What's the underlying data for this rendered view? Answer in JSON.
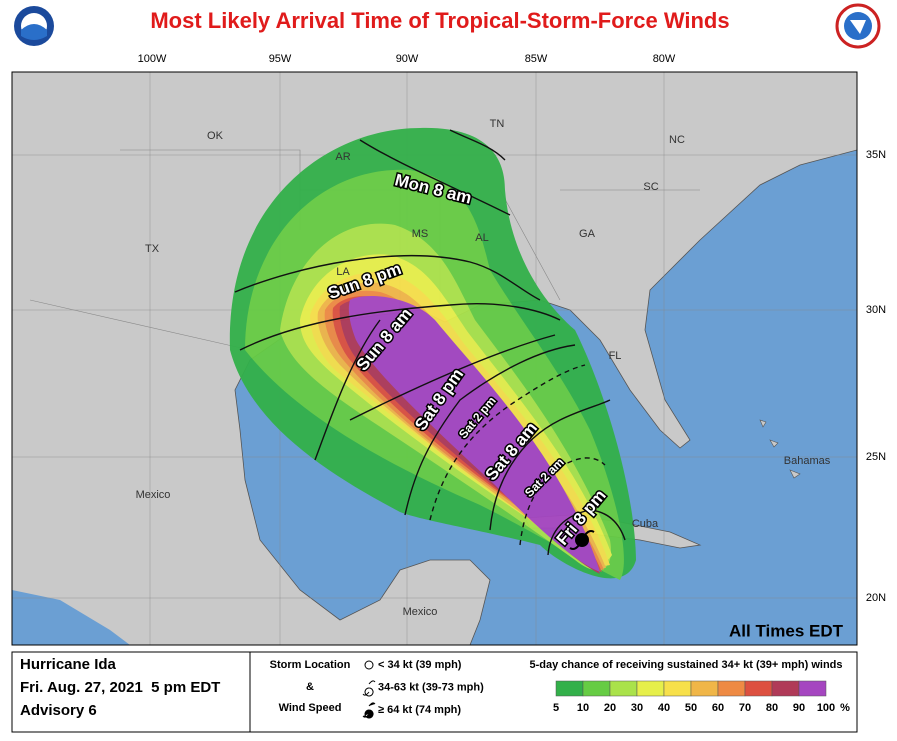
{
  "header": {
    "title": "Most Likely Arrival Time of Tropical-Storm-Force Winds"
  },
  "map": {
    "longitudes": [
      "100W",
      "95W",
      "90W",
      "85W",
      "80W"
    ],
    "latitudes": [
      "35N",
      "30N",
      "25N",
      "20N"
    ],
    "places": [
      "OK",
      "AR",
      "TN",
      "NC",
      "SC",
      "MS",
      "AL",
      "GA",
      "TX",
      "LA",
      "FL",
      "Bahamas",
      "Cuba",
      "Mexico",
      "Mexico"
    ],
    "arrival_times": [
      "Mon 8 am",
      "Sun 8 pm",
      "Sun 8 am",
      "Sat 8 pm",
      "Sat 2 pm",
      "Sat 8 am",
      "Sat 2 am",
      "Fri 8 pm"
    ],
    "note": "All Times EDT"
  },
  "footer": {
    "storm": {
      "name": "Hurricane Ida",
      "issued": "Fri. Aug. 27, 2021  5 pm EDT",
      "advisory": "Advisory 6"
    },
    "storm_location": {
      "title": "Storm Location",
      "amp": "&",
      "subtitle": "Wind Speed",
      "items": [
        "< 34 kt (39 mph)",
        "34-63 kt (39-73 mph)",
        "≥ 64 kt (74 mph)"
      ]
    },
    "probability": {
      "title": "5-day chance of receiving sustained 34+ kt (39+ mph) winds",
      "labels": [
        "5",
        "10",
        "20",
        "30",
        "40",
        "50",
        "60",
        "70",
        "80",
        "90",
        "100"
      ],
      "colors": [
        "#33b04a",
        "#66cc44",
        "#aae24a",
        "#e6ef4a",
        "#f7e04a",
        "#f0b648",
        "#ee8a44",
        "#dd5040",
        "#b03a58",
        "#a546c0"
      ],
      "unit": "%"
    }
  }
}
